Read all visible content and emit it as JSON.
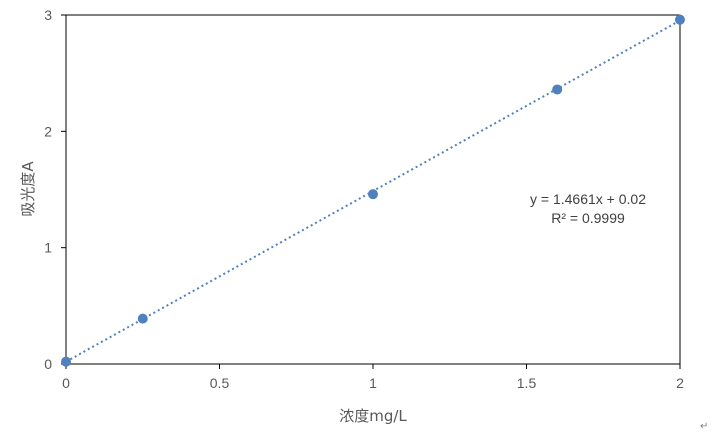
{
  "chart_data": {
    "type": "scatter",
    "title": "",
    "xlabel": "浓度mg/L",
    "ylabel": "吸光度A",
    "xlim": [
      0,
      2
    ],
    "ylim": [
      0,
      3
    ],
    "x_ticks": [
      "0",
      "0.5",
      "1",
      "1.5",
      "2"
    ],
    "x_tick_values": [
      0,
      0.5,
      1,
      1.5,
      2
    ],
    "y_ticks": [
      "0",
      "1",
      "2",
      "3"
    ],
    "y_tick_values": [
      0,
      1,
      2,
      3
    ],
    "grid": false,
    "legend": "none",
    "series": [
      {
        "x": [
          0,
          0.25,
          1,
          1.6,
          2
        ],
        "y": [
          0.02,
          0.39,
          1.46,
          2.36,
          2.96
        ],
        "color": "#4e81bd"
      }
    ],
    "trendline": {
      "type": "linear",
      "slope": 1.4661,
      "intercept": 0.02,
      "style": "dotted",
      "color": "#4e81bd",
      "equation": "y = 1.4661x + 0.02",
      "r_squared": "R² = 0.9999"
    }
  },
  "trailing_mark": "↵"
}
